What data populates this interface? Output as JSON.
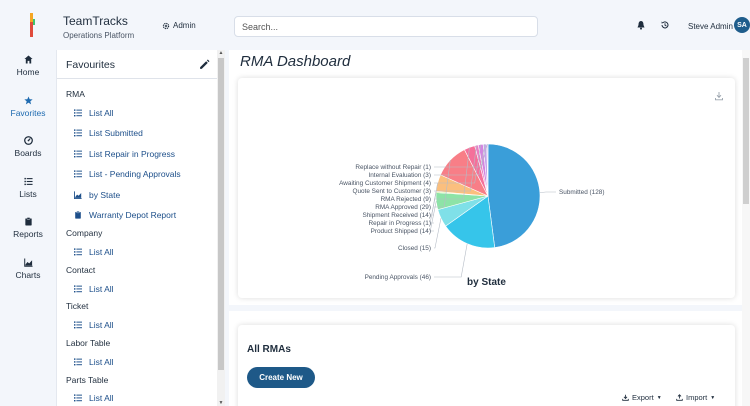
{
  "app": {
    "title": "TeamTracks",
    "subtitle": "Operations Platform",
    "admin_label": "Admin"
  },
  "search": {
    "placeholder": "Search..."
  },
  "user": {
    "name": "Steve Admin",
    "initials": "SA"
  },
  "nav": {
    "home": "Home",
    "favorites": "Favorites",
    "boards": "Boards",
    "lists": "Lists",
    "reports": "Reports",
    "charts": "Charts"
  },
  "favourites": {
    "title": "Favourites",
    "rma_section": "RMA",
    "rma_items": [
      "List All",
      "List Submitted",
      "List Repair in Progress",
      "List - Pending Approvals",
      "by State",
      "Warranty Depot Report"
    ],
    "company_section": "Company",
    "company_item": "List All",
    "contact_section": "Contact",
    "contact_item": "List All",
    "ticket_section": "Ticket",
    "ticket_item": "List All",
    "labor_section": "Labor Table",
    "labor_item": "List All",
    "parts_section": "Parts Table",
    "parts_item": "List All"
  },
  "main": {
    "page_title": "RMA Dashboard",
    "all_rmas_title": "All RMAs",
    "create_label": "Create New",
    "export_label": "Export",
    "import_label": "Import"
  },
  "chart_data": {
    "type": "pie",
    "title": "by State",
    "slices": [
      {
        "label": "Submitted (128)",
        "value": 128,
        "color": "#3a9ed9"
      },
      {
        "label": "Pending Approvals (46)",
        "value": 46,
        "color": "#36c5ea"
      },
      {
        "label": "Closed (15)",
        "value": 15,
        "color": "#7fe0e8"
      },
      {
        "label": "Product Shipped (14)",
        "value": 14,
        "color": "#8de3a7"
      },
      {
        "label": "Repair in Progress (1)",
        "value": 1,
        "color": "#c9ef8c"
      },
      {
        "label": "Shipment Received (14)",
        "value": 14,
        "color": "#fbbf7e"
      },
      {
        "label": "RMA Approved (29)",
        "value": 29,
        "color": "#f87e87"
      },
      {
        "label": "RMA Rejected (9)",
        "value": 9,
        "color": "#f5709a"
      },
      {
        "label": "Quote Sent to Customer (3)",
        "value": 3,
        "color": "#e97fc3"
      },
      {
        "label": "Awaiting Customer Shipment (4)",
        "value": 4,
        "color": "#d386e0"
      },
      {
        "label": "Internal Evaluation (3)",
        "value": 3,
        "color": "#c7a3ec"
      },
      {
        "label": "Replace without Repair (1)",
        "value": 1,
        "color": "#cfc3f2"
      }
    ]
  }
}
